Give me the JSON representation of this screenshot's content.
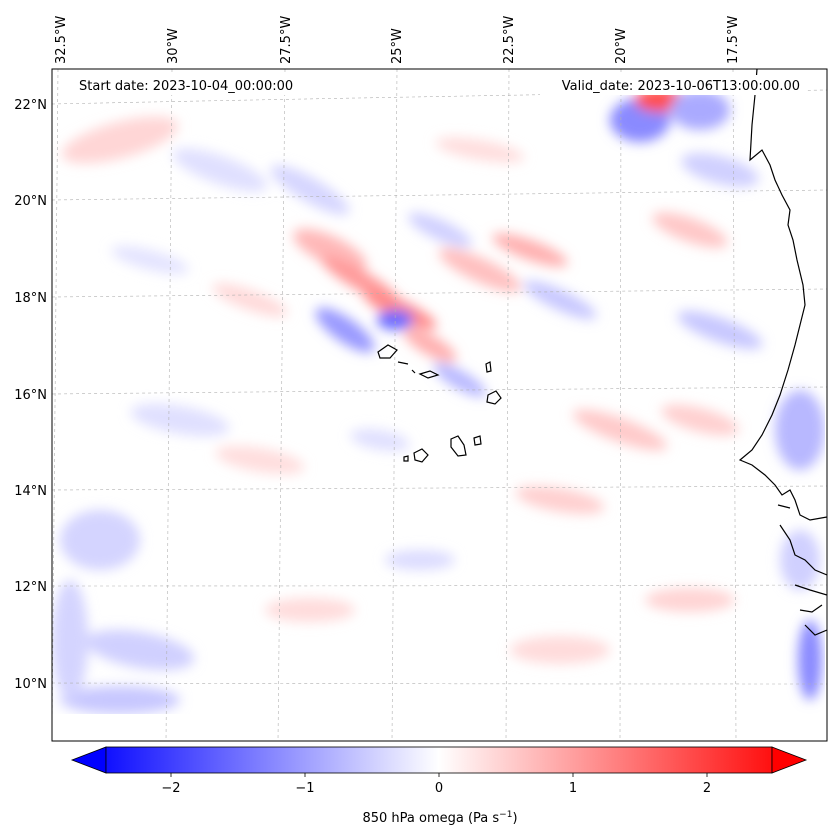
{
  "map": {
    "start_date_label": "Start date: 2023-10-04_00:00:00",
    "valid_date_label": "Valid_date: 2023-10-06T13:00:00.00",
    "lon_labels": [
      "32.5°W",
      "30°W",
      "27.5°W",
      "25°W",
      "22.5°W",
      "20°W",
      "17.5°W"
    ],
    "lat_labels": [
      "22°N",
      "20°N",
      "18°N",
      "16°N",
      "14°N",
      "12°N",
      "10°N"
    ],
    "colorbar": {
      "label_main": "850 hPa omega (Pa s",
      "label_sup": "−1",
      "label_end": ")",
      "ticks": [
        "−2",
        "−1",
        "0",
        "1",
        "2"
      ],
      "min_value": -2.6,
      "max_value": 2.6,
      "colormap": "bwr",
      "low_color": "#0000ff",
      "mid_color": "#ffffff",
      "high_color": "#ff0000"
    },
    "coastline_color": "#000000",
    "gridline_color": "#b0b0b0"
  }
}
